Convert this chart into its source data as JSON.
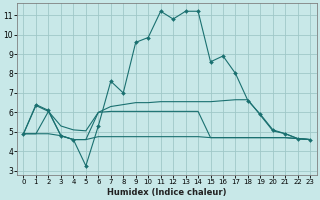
{
  "xlabel": "Humidex (Indice chaleur)",
  "background_color": "#c8e8e8",
  "grid_color": "#a0c8c8",
  "line_color": "#1a7070",
  "spine_color": "#808080",
  "xlim": [
    -0.5,
    23.5
  ],
  "ylim": [
    2.8,
    11.6
  ],
  "yticks": [
    3,
    4,
    5,
    6,
    7,
    8,
    9,
    10,
    11
  ],
  "xticks": [
    0,
    1,
    2,
    3,
    4,
    5,
    6,
    7,
    8,
    9,
    10,
    11,
    12,
    13,
    14,
    15,
    16,
    17,
    18,
    19,
    20,
    21,
    22,
    23
  ],
  "line1_x": [
    0,
    1,
    2,
    3,
    4,
    5,
    6,
    7,
    8,
    9,
    10,
    11,
    12,
    13,
    14,
    15,
    16,
    17,
    18,
    19,
    20,
    21,
    22,
    23
  ],
  "line1_y": [
    4.9,
    6.4,
    6.1,
    4.8,
    4.6,
    3.25,
    5.3,
    7.6,
    7.0,
    9.6,
    9.85,
    11.2,
    10.8,
    11.2,
    11.2,
    8.6,
    8.9,
    8.0,
    6.6,
    5.9,
    5.1,
    4.9,
    4.65,
    4.6
  ],
  "line2_x": [
    0,
    1,
    2,
    3,
    4,
    5,
    6,
    7,
    8,
    9,
    10,
    11,
    12,
    13,
    14,
    15,
    16,
    17,
    18,
    19,
    20,
    21,
    22,
    23
  ],
  "line2_y": [
    4.9,
    6.35,
    6.05,
    5.3,
    5.1,
    5.05,
    6.0,
    6.3,
    6.4,
    6.5,
    6.5,
    6.55,
    6.55,
    6.55,
    6.55,
    6.55,
    6.6,
    6.65,
    6.65,
    5.85,
    5.05,
    4.9,
    4.65,
    4.6
  ],
  "line3_x": [
    0,
    1,
    2,
    3,
    4,
    5,
    6,
    7,
    8,
    9,
    10,
    11,
    12,
    13,
    14,
    15,
    16,
    17,
    18,
    19,
    20,
    21,
    22,
    23
  ],
  "line3_y": [
    4.9,
    4.9,
    6.05,
    4.8,
    4.6,
    4.6,
    6.0,
    6.05,
    6.05,
    6.05,
    6.05,
    6.05,
    6.05,
    6.05,
    6.05,
    4.7,
    4.7,
    4.7,
    4.7,
    4.7,
    4.7,
    4.7,
    4.65,
    4.6
  ],
  "line4_x": [
    0,
    1,
    2,
    3,
    4,
    5,
    6,
    7,
    8,
    9,
    10,
    11,
    12,
    13,
    14,
    15,
    16,
    17,
    18,
    19,
    20,
    21,
    22,
    23
  ],
  "line4_y": [
    4.9,
    4.9,
    4.9,
    4.8,
    4.6,
    4.6,
    4.75,
    4.75,
    4.75,
    4.75,
    4.75,
    4.75,
    4.75,
    4.75,
    4.75,
    4.7,
    4.7,
    4.7,
    4.7,
    4.7,
    4.7,
    4.7,
    4.65,
    4.6
  ],
  "marker_x": [
    0,
    1,
    2,
    3,
    4,
    5,
    6,
    7,
    8,
    9,
    10,
    11,
    12,
    13,
    14,
    15,
    16,
    17,
    18,
    19,
    20,
    21,
    22,
    23
  ],
  "marker_y": [
    4.9,
    6.4,
    6.1,
    4.8,
    4.6,
    3.25,
    5.3,
    7.6,
    7.0,
    9.6,
    9.85,
    11.2,
    10.8,
    11.2,
    11.2,
    8.6,
    8.9,
    8.0,
    6.6,
    5.9,
    5.1,
    4.9,
    4.65,
    4.6
  ]
}
